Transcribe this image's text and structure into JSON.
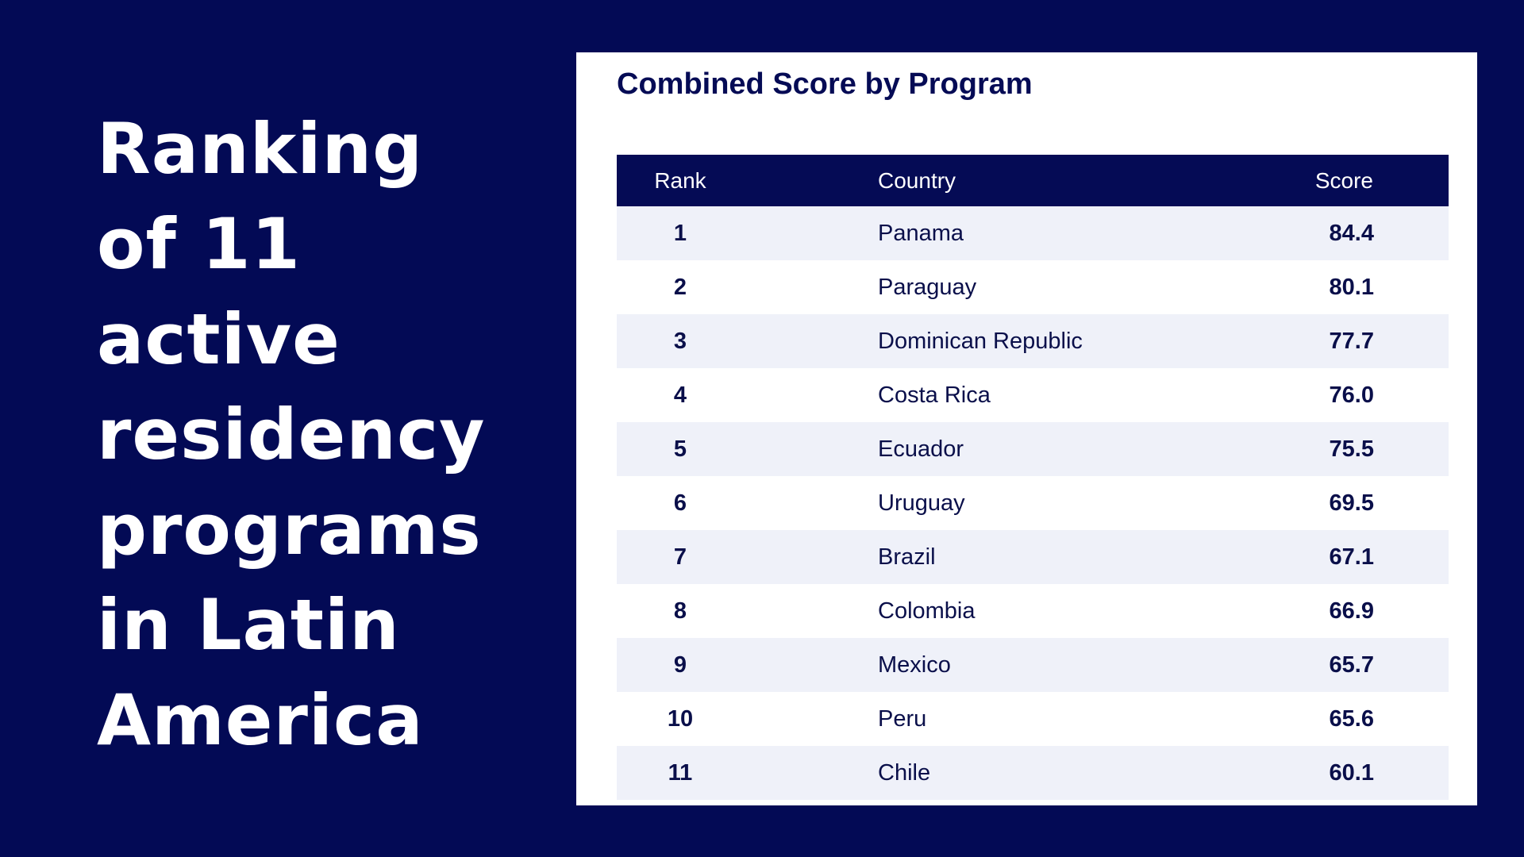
{
  "headline": {
    "lines": [
      "Ranking",
      "of 11",
      "active",
      "residency",
      "programs",
      "in Latin",
      "America"
    ]
  },
  "colors": {
    "background": "#030a55",
    "panel": "#ffffff",
    "header_bg": "#050b55",
    "row_alt": "#eff1f9",
    "text_dark": "#0a0f4a"
  },
  "chart_data": {
    "type": "table",
    "title": "Combined Score by Program",
    "columns": [
      "Rank",
      "Country",
      "Score"
    ],
    "rows": [
      {
        "rank": "1",
        "country": "Panama",
        "score": "84.4"
      },
      {
        "rank": "2",
        "country": "Paraguay",
        "score": "80.1"
      },
      {
        "rank": "3",
        "country": "Dominican Republic",
        "score": "77.7"
      },
      {
        "rank": "4",
        "country": "Costa Rica",
        "score": "76.0"
      },
      {
        "rank": "5",
        "country": "Ecuador",
        "score": "75.5"
      },
      {
        "rank": "6",
        "country": "Uruguay",
        "score": "69.5"
      },
      {
        "rank": "7",
        "country": "Brazil",
        "score": "67.1"
      },
      {
        "rank": "8",
        "country": "Colombia",
        "score": "66.9"
      },
      {
        "rank": "9",
        "country": "Mexico",
        "score": "65.7"
      },
      {
        "rank": "10",
        "country": "Peru",
        "score": "65.6"
      },
      {
        "rank": "11",
        "country": "Chile",
        "score": "60.1"
      }
    ]
  }
}
